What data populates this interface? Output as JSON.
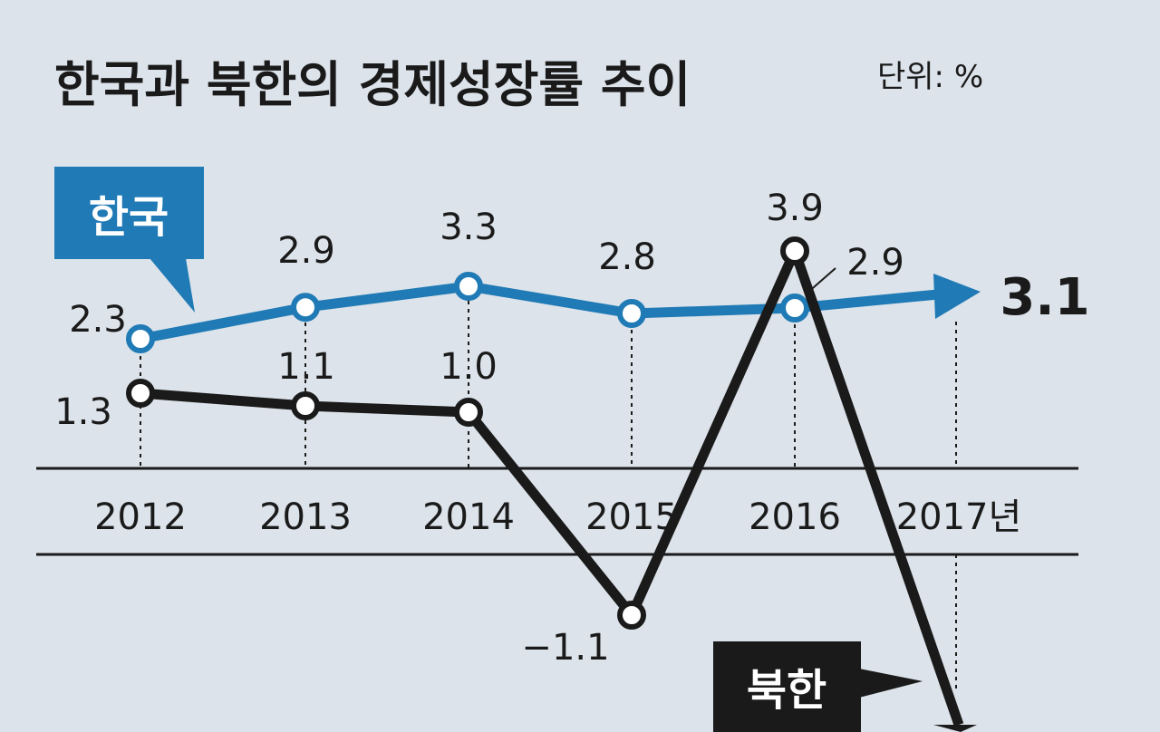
{
  "chart_data": {
    "type": "line",
    "title": "한국과 북한의 경제성장률 추이",
    "unit": "단위: %",
    "x": [
      "2012",
      "2013",
      "2014",
      "2015",
      "2016",
      "2017"
    ],
    "x_suffix_last": "2017년",
    "series": [
      {
        "name": "한국",
        "values": [
          2.3,
          2.9,
          3.3,
          2.8,
          2.9,
          3.1
        ],
        "labels": [
          "2.3",
          "2.9",
          "3.3",
          "2.8",
          "2.9",
          "3.1"
        ],
        "color": "#1f7ab5"
      },
      {
        "name": "북한",
        "values": [
          1.3,
          1.1,
          1.0,
          -1.1,
          3.9,
          -3.5
        ],
        "labels": [
          "1.3",
          "1.1",
          "1.0",
          "−1.1",
          "3.9",
          ""
        ],
        "color": "#1a1a1a"
      }
    ],
    "ylim": [
      -4,
      4.5
    ],
    "grid": false,
    "legend": "callout boxes"
  },
  "colors": {
    "background": "#dce3ea",
    "korea_label_bg": "#1f7ab5",
    "north_label_bg": "#1a1a1a",
    "label_text": "#ffffff"
  }
}
